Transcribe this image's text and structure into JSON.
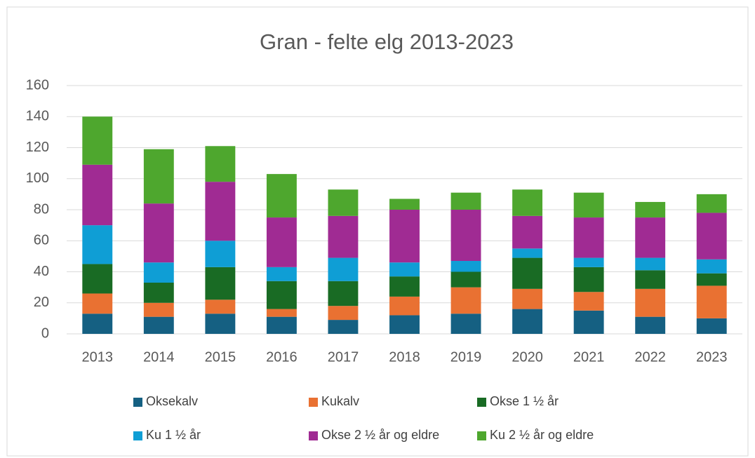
{
  "chart_data": {
    "type": "stacked_bar",
    "title": "Gran - felte elg 2013-2023",
    "categories": [
      "2013",
      "2014",
      "2015",
      "2016",
      "2017",
      "2018",
      "2019",
      "2020",
      "2021",
      "2022",
      "2023"
    ],
    "series": [
      {
        "name": "Oksekalv",
        "color": "#156082",
        "values": [
          13,
          11,
          13,
          11,
          9,
          12,
          13,
          16,
          15,
          11,
          10
        ]
      },
      {
        "name": "Kukalv",
        "color": "#e97132",
        "values": [
          13,
          9,
          9,
          5,
          9,
          12,
          17,
          13,
          12,
          18,
          21
        ]
      },
      {
        "name": "Okse 1 ½ år",
        "color": "#196b24",
        "values": [
          19,
          13,
          21,
          18,
          16,
          13,
          10,
          20,
          16,
          12,
          8
        ]
      },
      {
        "name": "Ku 1 ½ år",
        "color": "#0f9ed5",
        "values": [
          25,
          13,
          17,
          9,
          15,
          9,
          7,
          6,
          6,
          8,
          9
        ]
      },
      {
        "name": "Okse 2 ½ år og eldre",
        "color": "#a02b93",
        "values": [
          39,
          38,
          38,
          32,
          27,
          34,
          33,
          21,
          26,
          26,
          30
        ]
      },
      {
        "name": "Ku 2 ½ år og eldre",
        "color": "#4ea72e",
        "values": [
          31,
          35,
          23,
          28,
          17,
          7,
          11,
          17,
          16,
          10,
          12
        ]
      }
    ],
    "ylim": [
      0,
      160
    ],
    "yticks": [
      0,
      20,
      40,
      60,
      80,
      100,
      120,
      140,
      160
    ],
    "grid": true
  }
}
